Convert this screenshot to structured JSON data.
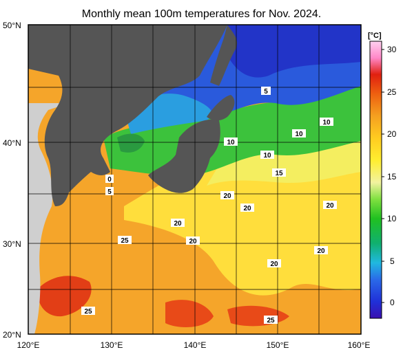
{
  "title": "Monthly mean 100m temperatures for Nov. 2024.",
  "colorbar": {
    "unit": "[°C]",
    "ticks": [
      "30",
      "25",
      "20",
      "15",
      "10",
      "5",
      "0"
    ],
    "range": [
      -3,
      32
    ]
  },
  "axes": {
    "lat_ticks": [
      "50°N",
      "40°N",
      "30°N",
      "20°N"
    ],
    "lon_ticks": [
      "120°E",
      "130°E",
      "140°E",
      "150°E",
      "160°E"
    ]
  },
  "contour_labels": [
    "5",
    "10",
    "10",
    "10",
    "10",
    "15",
    "0",
    "5",
    "20",
    "20",
    "20",
    "20",
    "20",
    "20",
    "20",
    "25",
    "25",
    "25"
  ],
  "colors": {
    "land": "#555555",
    "outside_region": "#cfcfcf",
    "grid": "#000000"
  }
}
